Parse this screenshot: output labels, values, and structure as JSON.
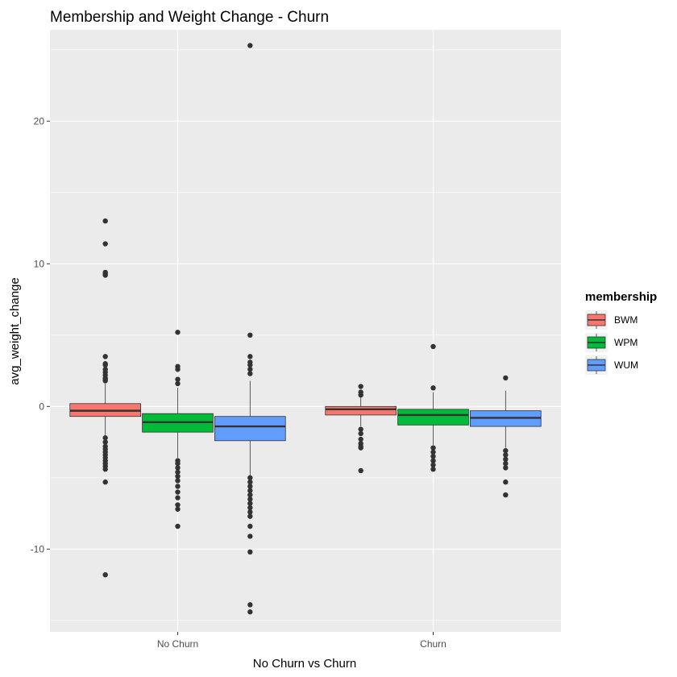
{
  "chart_data": {
    "type": "boxplot",
    "title": "Membership and Weight Change - Churn",
    "xlabel": "No Churn vs Churn",
    "ylabel": "avg_weight_change",
    "categories": [
      "No Churn",
      "Churn"
    ],
    "ylim": [
      -15.8,
      26.4
    ],
    "yticks": [
      -10,
      0,
      10,
      20
    ],
    "grid": true,
    "legend": {
      "title": "membership",
      "position": "right"
    },
    "series": [
      {
        "name": "BWM",
        "color": "#F8766D",
        "boxes": [
          {
            "q1": -0.7,
            "median": -0.3,
            "q3": 0.2,
            "whisker_low": -2.0,
            "whisker_high": 1.6,
            "outliers": [
              13.0,
              11.4,
              9.4,
              9.3,
              9.2,
              3.5,
              3.0,
              2.9,
              2.6,
              2.4,
              2.2,
              2.0,
              1.9,
              1.8,
              -2.2,
              -2.5,
              -2.8,
              -3.0,
              -3.2,
              -3.4,
              -3.6,
              -3.8,
              -4.0,
              -4.2,
              -4.4,
              -5.3,
              -11.8
            ]
          },
          {
            "q1": -0.6,
            "median": -0.2,
            "q3": 0.0,
            "whisker_low": -1.4,
            "whisker_high": 0.7,
            "outliers": [
              1.4,
              1.0,
              0.8,
              -1.6,
              -1.9,
              -2.3,
              -2.6,
              -2.8,
              -2.9,
              -4.5
            ]
          }
        ]
      },
      {
        "name": "WPM",
        "color": "#00BA38",
        "boxes": [
          {
            "q1": -1.8,
            "median": -1.1,
            "q3": -0.5,
            "whisker_low": -3.6,
            "whisker_high": 1.3,
            "outliers": [
              5.2,
              2.8,
              2.6,
              1.9,
              1.6,
              -3.8,
              -4.0,
              -4.3,
              -4.6,
              -4.9,
              -5.2,
              -5.6,
              -6.0,
              -6.4,
              -6.9,
              -7.2,
              -8.4
            ]
          },
          {
            "q1": -1.3,
            "median": -0.6,
            "q3": -0.2,
            "whisker_low": -2.7,
            "whisker_high": 1.0,
            "outliers": [
              4.2,
              1.3,
              -2.9,
              -3.2,
              -3.5,
              -3.8,
              -4.1,
              -4.4
            ]
          }
        ]
      },
      {
        "name": "WUM",
        "color": "#619CFF",
        "boxes": [
          {
            "q1": -2.4,
            "median": -1.4,
            "q3": -0.7,
            "whisker_low": -4.9,
            "whisker_high": 1.8,
            "outliers": [
              25.3,
              5.0,
              3.5,
              3.1,
              2.9,
              2.6,
              2.3,
              -5.0,
              -5.3,
              -5.6,
              -5.9,
              -6.2,
              -6.5,
              -6.8,
              -7.1,
              -7.4,
              -7.7,
              -8.4,
              -9.1,
              -10.2,
              -13.9,
              -14.4
            ]
          },
          {
            "q1": -1.4,
            "median": -0.8,
            "q3": -0.3,
            "whisker_low": -2.9,
            "whisker_high": 1.1,
            "outliers": [
              2.0,
              -3.1,
              -3.4,
              -3.7,
              -4.0,
              -4.3,
              -5.3,
              -6.2
            ]
          }
        ]
      }
    ]
  }
}
